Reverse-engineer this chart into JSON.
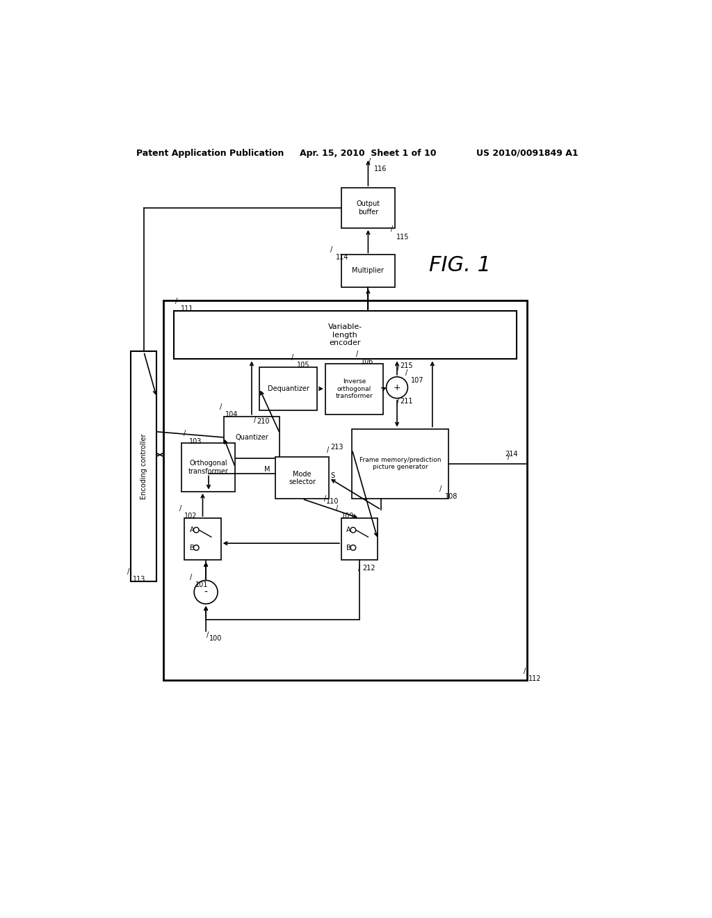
{
  "title_left": "Patent Application Publication",
  "title_center": "Apr. 15, 2010  Sheet 1 of 10",
  "title_right": "US 2010/0091849 A1",
  "fig_label": "FIG. 1",
  "background": "#ffffff"
}
